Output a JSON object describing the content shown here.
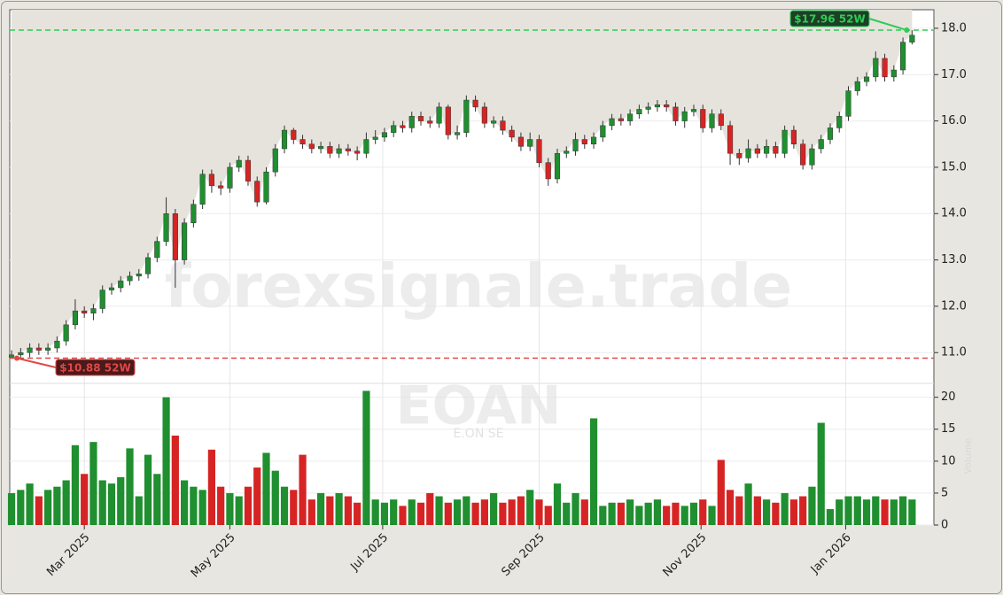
{
  "chart_data": {
    "type": "candlestick",
    "watermark": "forexsignale.trade",
    "symbol": "EOAN",
    "company": "E.ON SE",
    "volume_label": "Volume",
    "up_color": "#1f8f2f",
    "down_color": "#d62424",
    "xlim": [
      -0.2,
      101.4
    ],
    "xticks": [
      {
        "value": 8,
        "label": "Mar 2025"
      },
      {
        "value": 24,
        "label": "May 2025"
      },
      {
        "value": 40.8,
        "label": "Jul 2025"
      },
      {
        "value": 58,
        "label": "Sep 2025"
      },
      {
        "value": 75.8,
        "label": "Nov 2025"
      },
      {
        "value": 91.7,
        "label": "Jan 2026"
      }
    ],
    "ylim": [
      10.45,
      18.4
    ],
    "yticks": [
      {
        "value": 11,
        "label": "11.0"
      },
      {
        "value": 12,
        "label": "12.0"
      },
      {
        "value": 13,
        "label": "13.0"
      },
      {
        "value": 14,
        "label": "14.0"
      },
      {
        "value": 15,
        "label": "15.0"
      },
      {
        "value": 16,
        "label": "16.0"
      },
      {
        "value": 17,
        "label": "17.0"
      },
      {
        "value": 18,
        "label": "18.0"
      }
    ],
    "y2lim": [
      0,
      21.2
    ],
    "y2ticks": [
      0,
      5,
      10,
      15,
      20
    ],
    "grid": true,
    "open": [
      10.9,
      10.95,
      11.0,
      11.1,
      11.05,
      11.1,
      11.25,
      11.6,
      11.9,
      11.85,
      11.95,
      12.35,
      12.4,
      12.55,
      12.65,
      12.7,
      13.05,
      13.4,
      14.0,
      13.0,
      13.8,
      14.2,
      14.85,
      14.6,
      14.55,
      15.0,
      15.15,
      14.7,
      14.25,
      14.9,
      15.4,
      15.8,
      15.6,
      15.5,
      15.4,
      15.45,
      15.3,
      15.4,
      15.35,
      15.3,
      15.6,
      15.65,
      15.75,
      15.9,
      15.85,
      16.1,
      16.0,
      15.95,
      16.3,
      15.7,
      15.75,
      16.45,
      16.3,
      15.95,
      16.0,
      15.8,
      15.65,
      15.45,
      15.6,
      15.1,
      14.75,
      15.3,
      15.35,
      15.6,
      15.5,
      15.65,
      15.9,
      16.05,
      16.0,
      16.15,
      16.25,
      16.3,
      16.35,
      16.3,
      16.0,
      16.2,
      16.25,
      15.85,
      16.15,
      15.9,
      15.3,
      15.2,
      15.4,
      15.3,
      15.45,
      15.3,
      15.8,
      15.5,
      15.05,
      15.4,
      15.6,
      15.85,
      16.1,
      16.65,
      16.85,
      16.95,
      17.35,
      16.95,
      17.1,
      17.7
    ],
    "high": [
      11.05,
      11.1,
      11.2,
      11.2,
      11.2,
      11.35,
      11.7,
      12.15,
      12.0,
      12.05,
      12.45,
      12.5,
      12.65,
      12.75,
      12.8,
      13.15,
      13.5,
      14.35,
      14.1,
      13.9,
      14.3,
      14.95,
      14.95,
      14.7,
      15.1,
      15.25,
      15.25,
      14.8,
      15.0,
      15.5,
      15.9,
      15.85,
      15.7,
      15.6,
      15.55,
      15.55,
      15.5,
      15.5,
      15.45,
      15.75,
      15.8,
      15.85,
      16.0,
      16.0,
      16.2,
      16.2,
      16.1,
      16.4,
      16.35,
      15.9,
      16.55,
      16.55,
      16.4,
      16.1,
      16.1,
      15.9,
      15.75,
      15.75,
      15.7,
      15.2,
      15.4,
      15.45,
      15.75,
      15.7,
      15.75,
      16.0,
      16.15,
      16.15,
      16.25,
      16.35,
      16.4,
      16.45,
      16.45,
      16.4,
      16.3,
      16.35,
      16.35,
      16.25,
      16.25,
      16.0,
      15.4,
      15.6,
      15.5,
      15.6,
      15.55,
      15.9,
      15.9,
      15.6,
      15.5,
      15.7,
      15.95,
      16.2,
      16.75,
      16.95,
      17.05,
      17.5,
      17.45,
      17.2,
      17.8,
      17.96
    ],
    "low": [
      10.88,
      10.85,
      10.9,
      10.95,
      10.95,
      11.0,
      11.15,
      11.5,
      11.75,
      11.7,
      11.85,
      12.25,
      12.3,
      12.45,
      12.55,
      12.6,
      12.95,
      13.3,
      12.4,
      12.9,
      13.7,
      14.1,
      14.45,
      14.4,
      14.45,
      14.9,
      14.6,
      14.15,
      14.2,
      14.8,
      15.3,
      15.5,
      15.4,
      15.3,
      15.3,
      15.2,
      15.2,
      15.25,
      15.15,
      15.2,
      15.5,
      15.55,
      15.65,
      15.75,
      15.75,
      15.9,
      15.85,
      15.85,
      15.6,
      15.6,
      15.65,
      16.2,
      15.85,
      15.85,
      15.7,
      15.55,
      15.35,
      15.35,
      15.0,
      14.6,
      14.65,
      15.2,
      15.25,
      15.4,
      15.4,
      15.55,
      15.8,
      15.9,
      15.9,
      16.05,
      16.15,
      16.2,
      16.2,
      15.9,
      15.85,
      16.1,
      15.75,
      15.75,
      15.8,
      15.05,
      15.05,
      15.1,
      15.2,
      15.2,
      15.2,
      15.2,
      15.4,
      14.95,
      14.95,
      15.3,
      15.5,
      15.75,
      16.0,
      16.55,
      16.75,
      16.85,
      16.85,
      16.85,
      17.0,
      17.65
    ],
    "close": [
      10.95,
      11.0,
      11.1,
      11.05,
      11.1,
      11.25,
      11.6,
      11.9,
      11.85,
      11.95,
      12.35,
      12.4,
      12.55,
      12.65,
      12.7,
      13.05,
      13.4,
      14.0,
      13.0,
      13.8,
      14.2,
      14.85,
      14.6,
      14.55,
      15.0,
      15.15,
      14.7,
      14.25,
      14.9,
      15.4,
      15.8,
      15.6,
      15.5,
      15.4,
      15.45,
      15.3,
      15.4,
      15.35,
      15.3,
      15.6,
      15.65,
      15.75,
      15.9,
      15.85,
      16.1,
      16.0,
      15.95,
      16.3,
      15.7,
      15.75,
      16.45,
      16.3,
      15.95,
      16.0,
      15.8,
      15.65,
      15.45,
      15.6,
      15.1,
      14.75,
      15.3,
      15.35,
      15.6,
      15.5,
      15.65,
      15.9,
      16.05,
      16.0,
      16.15,
      16.25,
      16.3,
      16.35,
      16.3,
      16.0,
      16.2,
      16.25,
      15.85,
      16.15,
      15.9,
      15.3,
      15.2,
      15.4,
      15.3,
      15.45,
      15.3,
      15.8,
      15.5,
      15.05,
      15.4,
      15.6,
      15.85,
      16.1,
      16.65,
      16.85,
      16.95,
      17.35,
      16.95,
      17.1,
      17.7,
      17.85
    ],
    "volume": [
      5,
      5.5,
      6.5,
      4.5,
      5.5,
      6,
      7,
      12.5,
      8,
      13,
      7,
      6.5,
      7.5,
      12,
      4.5,
      11,
      8,
      20,
      14,
      7,
      6,
      5.5,
      11.8,
      6,
      5,
      4.5,
      6,
      9,
      11.3,
      8.5,
      6,
      5.5,
      11,
      4,
      5,
      4.5,
      5,
      4.5,
      3.5,
      21,
      4,
      3.5,
      4,
      3,
      4,
      3.5,
      5,
      4.5,
      3.5,
      4,
      4.5,
      3.5,
      4,
      5,
      3.5,
      4,
      4.5,
      5.5,
      4,
      3,
      6.5,
      3.5,
      5,
      4,
      16.7,
      3,
      3.5,
      3.5,
      4,
      3,
      3.5,
      4,
      3,
      3.5,
      3,
      3.5,
      4,
      3,
      10.2,
      5.5,
      4.5,
      6.5,
      4.5,
      4,
      3.5,
      5,
      4,
      4.5,
      6,
      16,
      2.5,
      4,
      4.5,
      4.5,
      4,
      4.5,
      4,
      4,
      4.5,
      4
    ],
    "annotations": [
      {
        "value": 17.96,
        "label": "$17.96 52W",
        "color": "#2ecc55"
      },
      {
        "value": 10.88,
        "label": "$10.88 52W",
        "color": "#e04848"
      }
    ]
  }
}
